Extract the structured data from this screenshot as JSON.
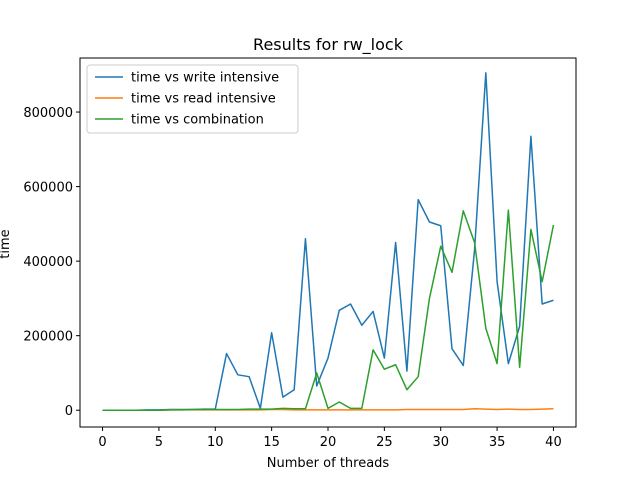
{
  "chart_data": {
    "type": "line",
    "title": "Results for rw_lock",
    "xlabel": "Number of threads",
    "ylabel": "time",
    "xlim": [
      -2,
      42
    ],
    "ylim": [
      -45000,
      945000
    ],
    "xticks": [
      0,
      5,
      10,
      15,
      20,
      25,
      30,
      35,
      40
    ],
    "yticks": [
      0,
      200000,
      400000,
      600000,
      800000
    ],
    "ytick_labels": [
      "0",
      "200000",
      "400000",
      "600000",
      "800000"
    ],
    "grid": false,
    "legend_position": "top-left",
    "x": [
      0,
      1,
      2,
      3,
      4,
      5,
      6,
      7,
      8,
      9,
      10,
      11,
      12,
      13,
      14,
      15,
      16,
      17,
      18,
      19,
      20,
      21,
      22,
      23,
      24,
      25,
      26,
      27,
      28,
      29,
      30,
      31,
      32,
      33,
      34,
      35,
      36,
      37,
      38,
      39,
      40
    ],
    "series": [
      {
        "name": "time vs write intensive",
        "color": "#1f77b4",
        "values": [
          0,
          0,
          0,
          0,
          1000,
          1000,
          2000,
          2000,
          2000,
          3000,
          3000,
          152000,
          95000,
          90000,
          5000,
          208000,
          35000,
          55000,
          460000,
          65000,
          140000,
          268000,
          285000,
          228000,
          265000,
          140000,
          450000,
          105000,
          565000,
          505000,
          495000,
          165000,
          120000,
          430000,
          905000,
          345000,
          125000,
          225000,
          735000,
          285000,
          295000
        ]
      },
      {
        "name": "time vs read intensive",
        "color": "#ff7f0e",
        "values": [
          0,
          0,
          0,
          0,
          0,
          0,
          1000,
          1000,
          1000,
          1000,
          1000,
          1000,
          1000,
          1000,
          1000,
          2000,
          2000,
          1000,
          1000,
          1000,
          1000,
          1000,
          1000,
          1000,
          1000,
          1000,
          1000,
          2000,
          2000,
          2000,
          2000,
          2000,
          2000,
          4000,
          3000,
          2000,
          3000,
          2000,
          2000,
          3000,
          4000
        ]
      },
      {
        "name": "time vs combination",
        "color": "#2ca02c",
        "values": [
          0,
          0,
          0,
          0,
          0,
          0,
          1000,
          1000,
          2000,
          2000,
          2000,
          2000,
          2000,
          3000,
          3000,
          3000,
          5000,
          4000,
          4000,
          100000,
          5000,
          22000,
          5000,
          5000,
          162000,
          110000,
          122000,
          55000,
          90000,
          300000,
          440000,
          370000,
          535000,
          450000,
          220000,
          125000,
          537000,
          115000,
          485000,
          345000,
          497000
        ]
      }
    ]
  }
}
